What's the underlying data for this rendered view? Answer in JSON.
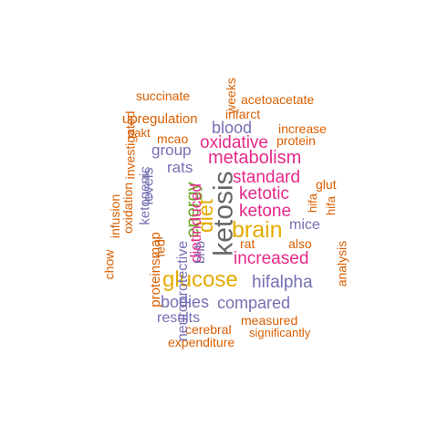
{
  "palette": {
    "orange": "#d95f02",
    "magenta": "#e7298a",
    "purple": "#7570b3",
    "green": "#66a61e",
    "gold": "#e6ab02",
    "gray": "#666666"
  },
  "words": [
    {
      "text": "ketosis",
      "color": "gray"
    },
    {
      "text": "brain",
      "color": "gold"
    },
    {
      "text": "glucose",
      "color": "gold"
    },
    {
      "text": "diet",
      "color": "gold"
    },
    {
      "text": "energy",
      "color": "green"
    },
    {
      "text": "metabolism",
      "color": "magenta"
    },
    {
      "text": "oxidative",
      "color": "magenta"
    },
    {
      "text": "standard",
      "color": "magenta"
    },
    {
      "text": "ketotic",
      "color": "magenta"
    },
    {
      "text": "ketone",
      "color": "magenta"
    },
    {
      "text": "increased",
      "color": "magenta"
    },
    {
      "text": "dietinduced",
      "color": "magenta"
    },
    {
      "text": "hifalpha",
      "color": "purple"
    },
    {
      "text": "compared",
      "color": "purple"
    },
    {
      "text": "bodies",
      "color": "purple"
    },
    {
      "text": "blood",
      "color": "purple"
    },
    {
      "text": "group",
      "color": "purple"
    },
    {
      "text": "rats",
      "color": "purple"
    },
    {
      "text": "mice",
      "color": "purple"
    },
    {
      "text": "results",
      "color": "purple"
    },
    {
      "text": "levels",
      "color": "purple"
    },
    {
      "text": "ketogenic",
      "color": "purple"
    },
    {
      "text": "bhb",
      "color": "purple"
    },
    {
      "text": "neuroprotective",
      "color": "purple"
    },
    {
      "text": "upregulation",
      "color": "orange"
    },
    {
      "text": "succinate",
      "color": "orange"
    },
    {
      "text": "acetoacetate",
      "color": "orange"
    },
    {
      "text": "infarct",
      "color": "orange"
    },
    {
      "text": "increase",
      "color": "orange"
    },
    {
      "text": "protein",
      "color": "orange"
    },
    {
      "text": "pakt",
      "color": "orange"
    },
    {
      "text": "mcao",
      "color": "orange"
    },
    {
      "text": "weeks",
      "color": "orange"
    },
    {
      "text": "investigated",
      "color": "orange"
    },
    {
      "text": "oxidation",
      "color": "orange"
    },
    {
      "text": "infusion",
      "color": "orange"
    },
    {
      "text": "chow",
      "color": "orange"
    },
    {
      "text": "proteinsmap",
      "color": "orange"
    },
    {
      "text": "fed",
      "color": "orange"
    },
    {
      "text": "mct",
      "color": "orange"
    },
    {
      "text": "glut",
      "color": "orange"
    },
    {
      "text": "hifa",
      "color": "orange"
    },
    {
      "text": "rat",
      "color": "orange"
    },
    {
      "text": "also",
      "color": "orange"
    },
    {
      "text": "analysis",
      "color": "orange"
    },
    {
      "text": "measured",
      "color": "orange"
    },
    {
      "text": "cerebral",
      "color": "orange"
    },
    {
      "text": "significantly",
      "color": "orange"
    },
    {
      "text": "expenditure",
      "color": "orange"
    }
  ]
}
